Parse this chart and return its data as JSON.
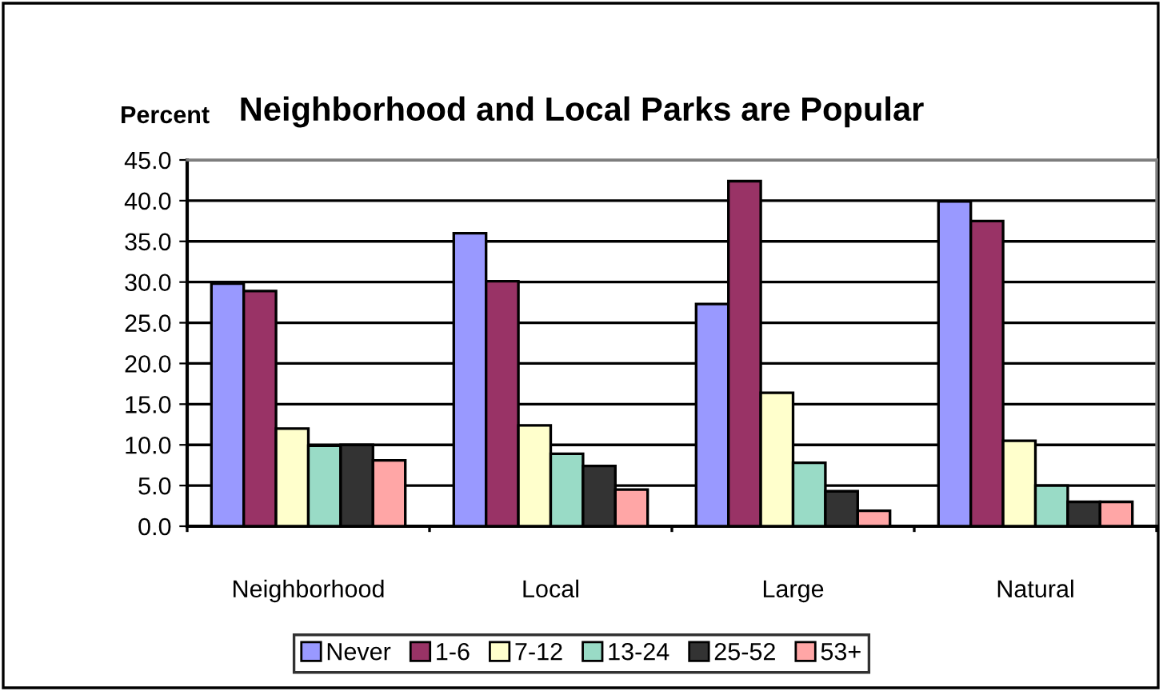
{
  "chart_data": {
    "type": "bar",
    "title": "Neighborhood and Local Parks are Popular",
    "ylabel": "Percent",
    "categories": [
      "Neighborhood",
      "Local",
      "Large",
      "Natural"
    ],
    "series": [
      {
        "name": "Never",
        "color": "#9999ff",
        "values": [
          29.8,
          36.0,
          27.3,
          39.9
        ]
      },
      {
        "name": "1-6",
        "color": "#993366",
        "values": [
          28.9,
          30.1,
          42.4,
          37.5
        ]
      },
      {
        "name": "7-12",
        "color": "#ffffcc",
        "values": [
          12.0,
          12.4,
          16.4,
          10.5
        ]
      },
      {
        "name": "13-24",
        "color": "#99dbc6",
        "values": [
          9.9,
          8.9,
          7.8,
          5.0
        ]
      },
      {
        "name": "25-52",
        "color": "#333333",
        "values": [
          10.0,
          7.4,
          4.3,
          3.0
        ]
      },
      {
        "name": "53+",
        "color": "#ffa6a6",
        "values": [
          8.1,
          4.5,
          1.9,
          3.0
        ]
      }
    ],
    "ylim": [
      0,
      45
    ],
    "yticks": [
      {
        "value": 0,
        "label": "0.0"
      },
      {
        "value": 5,
        "label": "5.0"
      },
      {
        "value": 10,
        "label": "10.0"
      },
      {
        "value": 15,
        "label": "15.0"
      },
      {
        "value": 20,
        "label": "20.0"
      },
      {
        "value": 25,
        "label": "25.0"
      },
      {
        "value": 30,
        "label": "30.0"
      },
      {
        "value": 35,
        "label": "35.0"
      },
      {
        "value": 40,
        "label": "40.0"
      },
      {
        "value": 45,
        "label": "45.0"
      }
    ],
    "grid": "y",
    "legend": "bottom"
  }
}
